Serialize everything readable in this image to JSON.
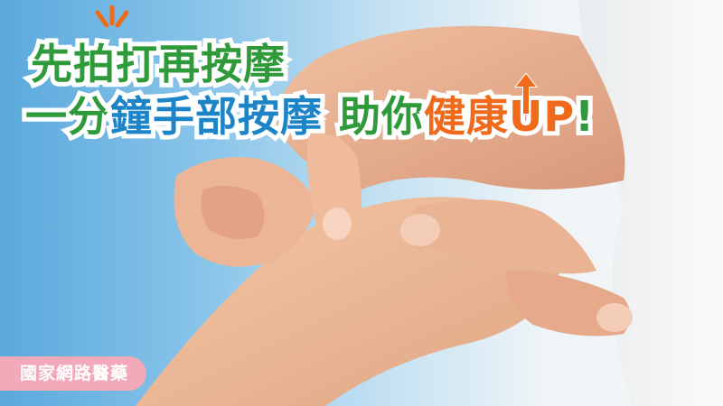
{
  "headline": {
    "line1": "先拍打再按摩",
    "line2_part1": "一分",
    "line2_part2": "鐘",
    "line2_part3": "手部按摩",
    "line2_part4": "助你",
    "line2_part5": "健康",
    "line2_part6": "UP",
    "line2_part7": "!"
  },
  "badge": "國家網路醫藥",
  "colors": {
    "green": "#2e9a3a",
    "blue": "#1e84c8",
    "orange": "#f06a1c",
    "badge": "#f2a9b9",
    "background": "#8cc6ea"
  }
}
